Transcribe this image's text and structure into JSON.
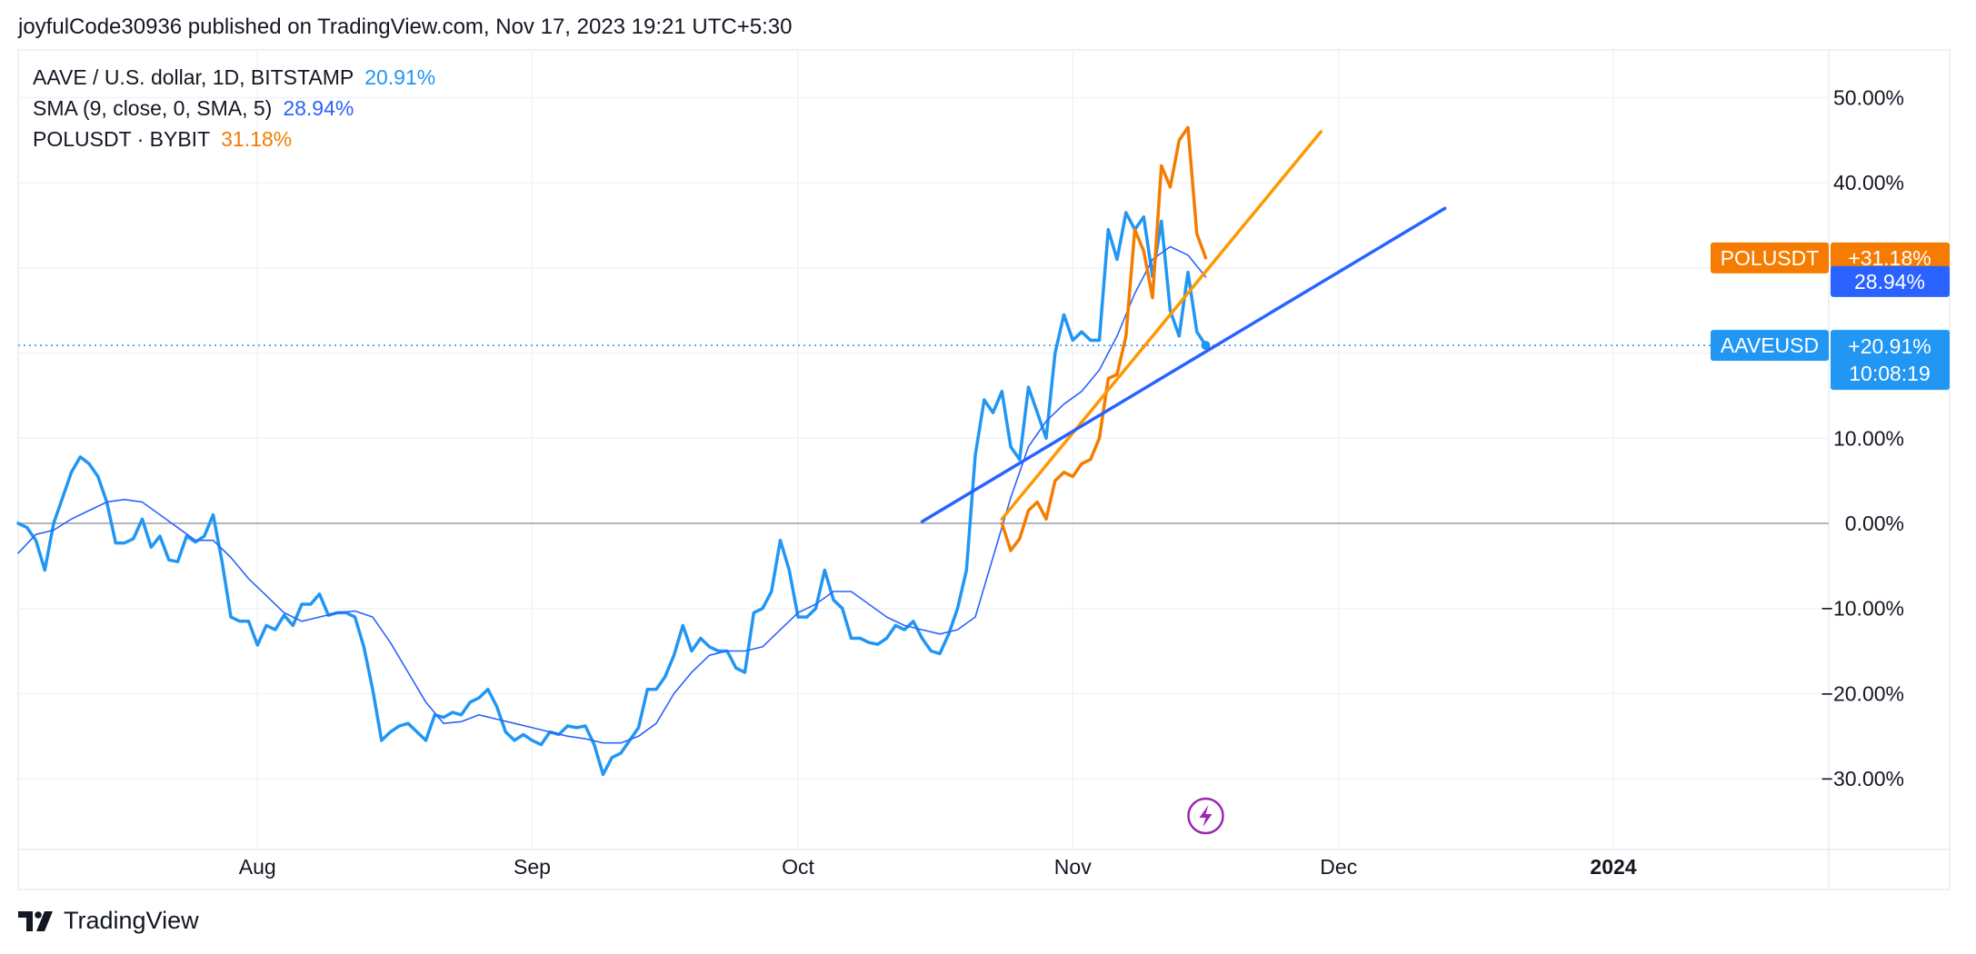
{
  "header": {
    "published": "joyfulCode30936 published on TradingView.com, Nov 17, 2023 19:21 UTC+5:30"
  },
  "footer": {
    "brand": "TradingView"
  },
  "colors": {
    "aave": "#2196f3",
    "sma": "#2962ff",
    "polusdt": "#f57c00",
    "trend_orange": "#ff9800",
    "trend_blue": "#2962ff",
    "zero_line": "#b2b5be",
    "grid": "#f0f3fa",
    "event": "#9c27b0"
  },
  "legend": [
    {
      "label": "AAVE / U.S. dollar, 1D, BITSTAMP",
      "value": "20.91%",
      "color": "#2196f3"
    },
    {
      "label": "SMA (9, close, 0, SMA, 5)",
      "value": "28.94%",
      "color": "#2962ff"
    },
    {
      "label": "POLUSDT · BYBIT",
      "value": "31.18%",
      "color": "#f57c00"
    }
  ],
  "price_tags": {
    "polusdt": {
      "name": "POLUSDT",
      "value": "+31.18%"
    },
    "sma": {
      "value": "28.94%"
    },
    "aave": {
      "name": "AAVEUSD",
      "value": "+20.91%",
      "countdown": "10:08:19"
    }
  },
  "chart_data": {
    "type": "line",
    "title": "",
    "xlabel": "",
    "ylabel": "",
    "x_unit": "date (2023)",
    "x_range": [
      "2023-07-05",
      "2024-01-27"
    ],
    "ylim": [
      -37,
      54
    ],
    "y_scale": "percent",
    "grid": true,
    "legend_placement": "top-left",
    "y_ticks": [
      {
        "value": 50,
        "label": "50.00%"
      },
      {
        "value": 40,
        "label": "40.00%"
      },
      {
        "value": 30,
        "label": ""
      },
      {
        "value": 20,
        "label": ""
      },
      {
        "value": 10,
        "label": "10.00%"
      },
      {
        "value": 0,
        "label": "0.00%"
      },
      {
        "value": -10,
        "label": "−10.00%"
      },
      {
        "value": -20,
        "label": "−20.00%"
      },
      {
        "value": -30,
        "label": "−30.00%"
      }
    ],
    "x_ticks": [
      {
        "date": "2023-08-01",
        "label": "Aug",
        "bold": false
      },
      {
        "date": "2023-09-01",
        "label": "Sep",
        "bold": false
      },
      {
        "date": "2023-10-01",
        "label": "Oct",
        "bold": false
      },
      {
        "date": "2023-11-01",
        "label": "Nov",
        "bold": false
      },
      {
        "date": "2023-12-01",
        "label": "Dec",
        "bold": false
      },
      {
        "date": "2024-01-01",
        "label": "2024",
        "bold": true
      }
    ],
    "series": [
      {
        "name": "AAVE / U.S. dollar, 1D, BITSTAMP",
        "color": "#2196f3",
        "width": 3.5,
        "points": [
          [
            "2023-07-05",
            0
          ],
          [
            "2023-07-06",
            -0.5
          ],
          [
            "2023-07-07",
            -2
          ],
          [
            "2023-07-08",
            -5.5
          ],
          [
            "2023-07-09",
            0
          ],
          [
            "2023-07-10",
            3
          ],
          [
            "2023-07-11",
            6
          ],
          [
            "2023-07-12",
            7.8
          ],
          [
            "2023-07-13",
            7
          ],
          [
            "2023-07-14",
            5.5
          ],
          [
            "2023-07-15",
            2.5
          ],
          [
            "2023-07-16",
            -2.3
          ],
          [
            "2023-07-17",
            -2.3
          ],
          [
            "2023-07-18",
            -1.8
          ],
          [
            "2023-07-19",
            0.5
          ],
          [
            "2023-07-20",
            -2.8
          ],
          [
            "2023-07-21",
            -1.5
          ],
          [
            "2023-07-22",
            -4.3
          ],
          [
            "2023-07-23",
            -4.5
          ],
          [
            "2023-07-24",
            -1.5
          ],
          [
            "2023-07-25",
            -2.2
          ],
          [
            "2023-07-26",
            -1.5
          ],
          [
            "2023-07-27",
            1
          ],
          [
            "2023-07-28",
            -4.5
          ],
          [
            "2023-07-29",
            -11
          ],
          [
            "2023-07-30",
            -11.5
          ],
          [
            "2023-07-31",
            -11.5
          ],
          [
            "2023-08-01",
            -14.3
          ],
          [
            "2023-08-02",
            -12
          ],
          [
            "2023-08-03",
            -12.5
          ],
          [
            "2023-08-04",
            -10.8
          ],
          [
            "2023-08-05",
            -12
          ],
          [
            "2023-08-06",
            -9.5
          ],
          [
            "2023-08-07",
            -9.5
          ],
          [
            "2023-08-08",
            -8.3
          ],
          [
            "2023-08-09",
            -10.8
          ],
          [
            "2023-08-10",
            -10.5
          ],
          [
            "2023-08-11",
            -10.5
          ],
          [
            "2023-08-12",
            -11
          ],
          [
            "2023-08-13",
            -14.5
          ],
          [
            "2023-08-14",
            -19.5
          ],
          [
            "2023-08-15",
            -25.5
          ],
          [
            "2023-08-16",
            -24.5
          ],
          [
            "2023-08-17",
            -23.8
          ],
          [
            "2023-08-18",
            -23.5
          ],
          [
            "2023-08-19",
            -24.5
          ],
          [
            "2023-08-20",
            -25.5
          ],
          [
            "2023-08-21",
            -22.5
          ],
          [
            "2023-08-22",
            -22.8
          ],
          [
            "2023-08-23",
            -22.2
          ],
          [
            "2023-08-24",
            -22.5
          ],
          [
            "2023-08-25",
            -21
          ],
          [
            "2023-08-26",
            -20.5
          ],
          [
            "2023-08-27",
            -19.5
          ],
          [
            "2023-08-28",
            -21.5
          ],
          [
            "2023-08-29",
            -24.5
          ],
          [
            "2023-08-30",
            -25.5
          ],
          [
            "2023-08-31",
            -24.8
          ],
          [
            "2023-09-01",
            -25.5
          ],
          [
            "2023-09-02",
            -26
          ],
          [
            "2023-09-03",
            -24.5
          ],
          [
            "2023-09-04",
            -24.8
          ],
          [
            "2023-09-05",
            -23.8
          ],
          [
            "2023-09-06",
            -24
          ],
          [
            "2023-09-07",
            -23.8
          ],
          [
            "2023-09-08",
            -26
          ],
          [
            "2023-09-09",
            -29.5
          ],
          [
            "2023-09-10",
            -27.5
          ],
          [
            "2023-09-11",
            -27
          ],
          [
            "2023-09-12",
            -25.5
          ],
          [
            "2023-09-13",
            -24
          ],
          [
            "2023-09-14",
            -19.5
          ],
          [
            "2023-09-15",
            -19.5
          ],
          [
            "2023-09-16",
            -18
          ],
          [
            "2023-09-17",
            -15.5
          ],
          [
            "2023-09-18",
            -12
          ],
          [
            "2023-09-19",
            -15
          ],
          [
            "2023-09-20",
            -13.5
          ],
          [
            "2023-09-21",
            -14.5
          ],
          [
            "2023-09-22",
            -15
          ],
          [
            "2023-09-23",
            -15
          ],
          [
            "2023-09-24",
            -17
          ],
          [
            "2023-09-25",
            -17.5
          ],
          [
            "2023-09-26",
            -10.5
          ],
          [
            "2023-09-27",
            -10
          ],
          [
            "2023-09-28",
            -8
          ],
          [
            "2023-09-29",
            -2
          ],
          [
            "2023-09-30",
            -5.5
          ],
          [
            "2023-10-01",
            -11
          ],
          [
            "2023-10-02",
            -11
          ],
          [
            "2023-10-03",
            -10
          ],
          [
            "2023-10-04",
            -5.5
          ],
          [
            "2023-10-05",
            -9
          ],
          [
            "2023-10-06",
            -10
          ],
          [
            "2023-10-07",
            -13.5
          ],
          [
            "2023-10-08",
            -13.5
          ],
          [
            "2023-10-09",
            -14
          ],
          [
            "2023-10-10",
            -14.2
          ],
          [
            "2023-10-11",
            -13.5
          ],
          [
            "2023-10-12",
            -12
          ],
          [
            "2023-10-13",
            -12.5
          ],
          [
            "2023-10-14",
            -11.5
          ],
          [
            "2023-10-15",
            -13.5
          ],
          [
            "2023-10-16",
            -15
          ],
          [
            "2023-10-17",
            -15.3
          ],
          [
            "2023-10-18",
            -13
          ],
          [
            "2023-10-19",
            -10
          ],
          [
            "2023-10-20",
            -5.5
          ],
          [
            "2023-10-21",
            8
          ],
          [
            "2023-10-22",
            14.5
          ],
          [
            "2023-10-23",
            13
          ],
          [
            "2023-10-24",
            15.5
          ],
          [
            "2023-10-25",
            9
          ],
          [
            "2023-10-26",
            7.5
          ],
          [
            "2023-10-27",
            16
          ],
          [
            "2023-10-28",
            13
          ],
          [
            "2023-10-29",
            10
          ],
          [
            "2023-10-30",
            20
          ],
          [
            "2023-10-31",
            24.5
          ],
          [
            "2023-11-01",
            21.5
          ],
          [
            "2023-11-02",
            22.5
          ],
          [
            "2023-11-03",
            21.5
          ],
          [
            "2023-11-04",
            21.5
          ],
          [
            "2023-11-05",
            34.5
          ],
          [
            "2023-11-06",
            31
          ],
          [
            "2023-11-07",
            36.5
          ],
          [
            "2023-11-08",
            34.5
          ],
          [
            "2023-11-09",
            36
          ],
          [
            "2023-11-10",
            29
          ],
          [
            "2023-11-11",
            35.5
          ],
          [
            "2023-11-12",
            25
          ],
          [
            "2023-11-13",
            22
          ],
          [
            "2023-11-14",
            29.5
          ],
          [
            "2023-11-15",
            22.5
          ],
          [
            "2023-11-16",
            20.91
          ]
        ]
      },
      {
        "name": "SMA (9, close, 0, SMA, 5)",
        "color": "#2962ff",
        "width": 1.6,
        "points": [
          [
            "2023-07-05",
            -3.5
          ],
          [
            "2023-07-07",
            -1.3
          ],
          [
            "2023-07-09",
            -0.8
          ],
          [
            "2023-07-11",
            0.5
          ],
          [
            "2023-07-13",
            1.5
          ],
          [
            "2023-07-15",
            2.5
          ],
          [
            "2023-07-17",
            2.8
          ],
          [
            "2023-07-19",
            2.5
          ],
          [
            "2023-07-21",
            1
          ],
          [
            "2023-07-23",
            -0.5
          ],
          [
            "2023-07-25",
            -2
          ],
          [
            "2023-07-27",
            -2
          ],
          [
            "2023-07-29",
            -4
          ],
          [
            "2023-07-31",
            -6.5
          ],
          [
            "2023-08-02",
            -8.5
          ],
          [
            "2023-08-04",
            -10.5
          ],
          [
            "2023-08-06",
            -11.5
          ],
          [
            "2023-08-08",
            -11
          ],
          [
            "2023-08-10",
            -10.5
          ],
          [
            "2023-08-12",
            -10.3
          ],
          [
            "2023-08-14",
            -11
          ],
          [
            "2023-08-16",
            -14
          ],
          [
            "2023-08-18",
            -17.5
          ],
          [
            "2023-08-20",
            -21
          ],
          [
            "2023-08-22",
            -23.5
          ],
          [
            "2023-08-24",
            -23.3
          ],
          [
            "2023-08-26",
            -22.5
          ],
          [
            "2023-08-28",
            -23
          ],
          [
            "2023-08-30",
            -23.5
          ],
          [
            "2023-09-01",
            -24
          ],
          [
            "2023-09-03",
            -24.5
          ],
          [
            "2023-09-05",
            -25
          ],
          [
            "2023-09-07",
            -25.3
          ],
          [
            "2023-09-09",
            -25.8
          ],
          [
            "2023-09-11",
            -25.8
          ],
          [
            "2023-09-13",
            -25
          ],
          [
            "2023-09-15",
            -23.5
          ],
          [
            "2023-09-17",
            -20
          ],
          [
            "2023-09-19",
            -17.5
          ],
          [
            "2023-09-21",
            -15.5
          ],
          [
            "2023-09-23",
            -15
          ],
          [
            "2023-09-25",
            -15
          ],
          [
            "2023-09-27",
            -14.5
          ],
          [
            "2023-09-29",
            -12.5
          ],
          [
            "2023-10-01",
            -10.5
          ],
          [
            "2023-10-03",
            -9.5
          ],
          [
            "2023-10-05",
            -8
          ],
          [
            "2023-10-07",
            -8
          ],
          [
            "2023-10-09",
            -9.5
          ],
          [
            "2023-10-11",
            -11
          ],
          [
            "2023-10-13",
            -12
          ],
          [
            "2023-10-15",
            -12.5
          ],
          [
            "2023-10-17",
            -13
          ],
          [
            "2023-10-19",
            -12.5
          ],
          [
            "2023-10-21",
            -11
          ],
          [
            "2023-10-23",
            -4
          ],
          [
            "2023-10-25",
            3
          ],
          [
            "2023-10-27",
            9
          ],
          [
            "2023-10-29",
            12
          ],
          [
            "2023-10-31",
            14
          ],
          [
            "2023-11-02",
            15.5
          ],
          [
            "2023-11-04",
            18
          ],
          [
            "2023-11-06",
            22
          ],
          [
            "2023-11-08",
            27
          ],
          [
            "2023-11-10",
            31
          ],
          [
            "2023-11-12",
            32.5
          ],
          [
            "2023-11-14",
            31.5
          ],
          [
            "2023-11-16",
            28.94
          ]
        ]
      },
      {
        "name": "POLUSDT · BYBIT",
        "color": "#f57c00",
        "width": 3.5,
        "points": [
          [
            "2023-10-24",
            0
          ],
          [
            "2023-10-25",
            -3.2
          ],
          [
            "2023-10-26",
            -1.8
          ],
          [
            "2023-10-27",
            1.5
          ],
          [
            "2023-10-28",
            2.5
          ],
          [
            "2023-10-29",
            0.5
          ],
          [
            "2023-10-30",
            5
          ],
          [
            "2023-10-31",
            6
          ],
          [
            "2023-11-01",
            5.5
          ],
          [
            "2023-11-02",
            7
          ],
          [
            "2023-11-03",
            7.5
          ],
          [
            "2023-11-04",
            10
          ],
          [
            "2023-11-05",
            17
          ],
          [
            "2023-11-06",
            17.5
          ],
          [
            "2023-11-07",
            22
          ],
          [
            "2023-11-08",
            34.5
          ],
          [
            "2023-11-09",
            32
          ],
          [
            "2023-11-10",
            26.5
          ],
          [
            "2023-11-11",
            42
          ],
          [
            "2023-11-12",
            39.5
          ],
          [
            "2023-11-13",
            45
          ],
          [
            "2023-11-14",
            46.5
          ],
          [
            "2023-11-15",
            34
          ],
          [
            "2023-11-16",
            31.18
          ]
        ]
      }
    ],
    "trend_lines": [
      {
        "color": "#ff9800",
        "from": [
          "2023-10-24",
          0.5
        ],
        "to": [
          "2023-11-29",
          46
        ]
      },
      {
        "color": "#2962ff",
        "from": [
          "2023-10-15",
          0.2
        ],
        "to": [
          "2023-12-13",
          37
        ]
      }
    ],
    "current_price_line": {
      "value": 20.91,
      "color": "#2196f3"
    },
    "events": [
      {
        "date": "2023-11-16",
        "icon": "lightning-icon"
      }
    ]
  }
}
